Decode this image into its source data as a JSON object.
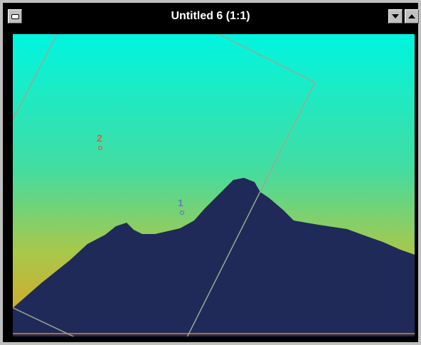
{
  "window": {
    "title": "Untitled 6 (1:1)"
  },
  "buttons": {
    "close_icon": "window-menu-icon",
    "minimize_icon": "minimize-arrow-icon",
    "maximize_icon": "maximize-arrow-icon"
  },
  "markers": [
    {
      "label": "2",
      "color": "#c46a4a"
    },
    {
      "label": "1",
      "color": "#6a7ab8"
    }
  ],
  "colors": {
    "sky_top": "#00f5e0",
    "sky_mid": "#a8c84a",
    "sky_bottom": "#e0a020",
    "terrain": "#202a58",
    "frame_line": "#9aa890",
    "ground_line": "#c06a20"
  }
}
